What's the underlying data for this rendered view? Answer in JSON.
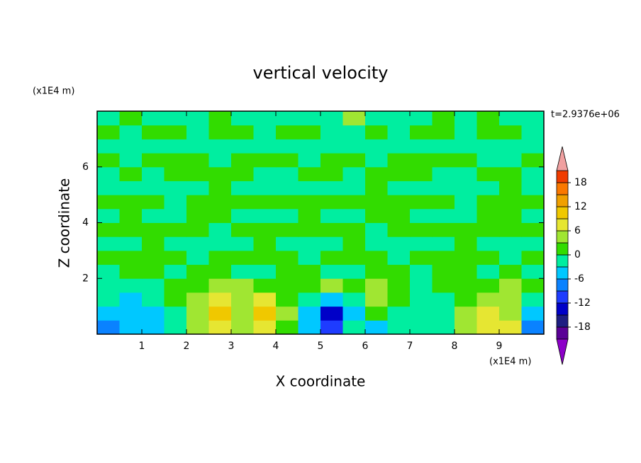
{
  "chart_data": {
    "type": "contourf",
    "title": "vertical velocity",
    "x_label": "X coordinate",
    "y_label": "Z coordinate",
    "x_unit": "(x1E4 m)",
    "y_unit": "(x1E4 m)",
    "annotation": "t=2.9376e+06",
    "xlim": [
      0,
      10
    ],
    "ylim": [
      0,
      8
    ],
    "xticks": [
      1,
      2,
      3,
      4,
      5,
      6,
      7,
      8,
      9
    ],
    "yticks": [
      2,
      4,
      6
    ],
    "x": [
      0.25,
      0.75,
      1.25,
      1.75,
      2.25,
      2.75,
      3.25,
      3.75,
      4.25,
      4.75,
      5.25,
      5.75,
      6.25,
      6.75,
      7.25,
      7.75,
      8.25,
      8.75,
      9.25,
      9.75
    ],
    "y": [
      0.25,
      0.75,
      1.25,
      1.75,
      2.25,
      2.75,
      3.25,
      3.75,
      4.25,
      4.75,
      5.25,
      5.75,
      6.25,
      6.75,
      7.25,
      7.75
    ],
    "z": [
      [
        -9,
        -5,
        -4,
        -2,
        4,
        7,
        5,
        7,
        1,
        -4,
        -11,
        -2,
        -5,
        -2,
        -2,
        -1,
        4,
        8,
        6,
        -8
      ],
      [
        -6,
        -5,
        -4,
        -1,
        5,
        9,
        5,
        10,
        3,
        -6,
        -14,
        -4,
        2,
        -3,
        -2,
        -1,
        4,
        6,
        5,
        -4
      ],
      [
        -3,
        -4,
        -3,
        0,
        4,
        6,
        5,
        6,
        2,
        -3,
        -5,
        -1,
        5,
        1,
        -2,
        -1,
        2,
        4,
        4,
        -1
      ],
      [
        -1,
        -1,
        -1,
        1,
        2,
        3,
        3,
        2,
        1,
        0,
        3,
        0,
        3,
        0,
        -1,
        0,
        1,
        2,
        4,
        2
      ],
      [
        -1,
        1,
        1,
        -1,
        1,
        1,
        -1,
        -1,
        1,
        1,
        -1,
        -1,
        1,
        1,
        -1,
        1,
        1,
        -1,
        1,
        -1
      ],
      [
        1,
        1,
        1,
        1,
        -1,
        1,
        1,
        1,
        1,
        -1,
        1,
        1,
        1,
        -1,
        1,
        1,
        1,
        1,
        -1,
        1
      ],
      [
        -1,
        -1,
        1,
        -1,
        -1,
        -1,
        -1,
        1,
        -1,
        -1,
        -1,
        1,
        -1,
        -1,
        -1,
        -1,
        1,
        -1,
        -1,
        -1
      ],
      [
        1,
        1,
        1,
        1,
        1,
        -1,
        1,
        1,
        1,
        1,
        1,
        1,
        -1,
        1,
        1,
        1,
        1,
        1,
        1,
        1
      ],
      [
        -1,
        1,
        -1,
        -1,
        1,
        1,
        -1,
        -1,
        -1,
        1,
        -1,
        -1,
        1,
        1,
        -1,
        -1,
        -1,
        1,
        1,
        -1
      ],
      [
        1,
        1,
        1,
        -1,
        1,
        1,
        1,
        1,
        1,
        1,
        1,
        1,
        1,
        1,
        1,
        1,
        -1,
        1,
        1,
        1
      ],
      [
        -1,
        -1,
        -1,
        -1,
        -1,
        1,
        -1,
        -1,
        -1,
        -1,
        -1,
        -1,
        1,
        -1,
        -1,
        -1,
        -1,
        -1,
        1,
        -1
      ],
      [
        -1,
        1,
        -1,
        1,
        1,
        1,
        1,
        -1,
        -1,
        1,
        1,
        -1,
        1,
        1,
        1,
        -1,
        -1,
        1,
        1,
        -1
      ],
      [
        1,
        -1,
        1,
        1,
        1,
        -1,
        1,
        1,
        1,
        -1,
        1,
        1,
        -1,
        1,
        1,
        1,
        1,
        -1,
        -1,
        1
      ],
      [
        -1,
        -1,
        -1,
        -1,
        -1,
        -1,
        -1,
        -1,
        -1,
        -1,
        -1,
        -1,
        -1,
        -1,
        -1,
        -1,
        -1,
        -1,
        -1,
        -1
      ],
      [
        1,
        -1,
        1,
        1,
        -1,
        1,
        1,
        -1,
        1,
        1,
        -1,
        -1,
        1,
        -1,
        1,
        1,
        -1,
        1,
        1,
        -1
      ],
      [
        -1,
        2,
        -1,
        -1,
        -1,
        2,
        -1,
        -1,
        -1,
        -2,
        -1,
        4,
        -1,
        -1,
        -1,
        1,
        -1,
        2,
        -1,
        -1
      ]
    ],
    "levels": [
      -21,
      -18,
      -15,
      -12,
      -9,
      -6,
      -3,
      0,
      3,
      6,
      9,
      12,
      15,
      18,
      21
    ],
    "colors": [
      "#8c00c8",
      "#5a0096",
      "#1e1e82",
      "#0000c8",
      "#1e3cff",
      "#0a82ff",
      "#00c8ff",
      "#00eea0",
      "#32dc00",
      "#a0e632",
      "#e6e632",
      "#f0c800",
      "#f0a000",
      "#fa7800",
      "#f03c00",
      "#f0a0a0"
    ],
    "colorbar_ticks": [
      -18,
      -12,
      -6,
      0,
      6,
      12,
      18
    ]
  }
}
